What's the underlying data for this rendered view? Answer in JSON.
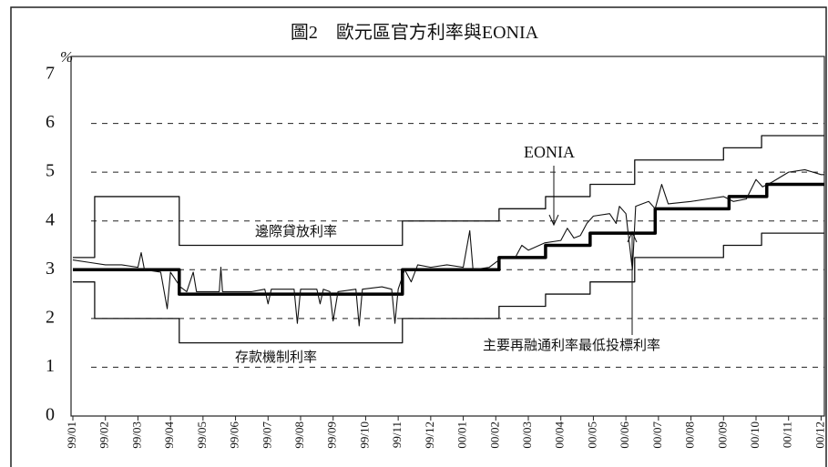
{
  "chart_data": {
    "type": "line",
    "title": "圖2　歐元區官方利率與EONIA",
    "y_unit": "%",
    "annotations": [
      "EONIA",
      "邊際貸放利率",
      "存款機制利率",
      "主要再融通利率最低投標利率"
    ],
    "xlim": [
      0,
      23.1
    ],
    "xticks": [
      {
        "value": 0,
        "label": "99/01"
      },
      {
        "value": 1,
        "label": "99/02"
      },
      {
        "value": 2,
        "label": "99/03"
      },
      {
        "value": 3,
        "label": "99/04"
      },
      {
        "value": 4,
        "label": "99/05"
      },
      {
        "value": 5,
        "label": "99/06"
      },
      {
        "value": 6,
        "label": "99/07"
      },
      {
        "value": 7,
        "label": "99/08"
      },
      {
        "value": 8,
        "label": "99/09"
      },
      {
        "value": 9,
        "label": "99/10"
      },
      {
        "value": 10,
        "label": "99/11"
      },
      {
        "value": 11,
        "label": "99/12"
      },
      {
        "value": 12,
        "label": "00/01"
      },
      {
        "value": 13,
        "label": "00/02"
      },
      {
        "value": 14,
        "label": "00/03"
      },
      {
        "value": 15,
        "label": "00/04"
      },
      {
        "value": 16,
        "label": "00/05"
      },
      {
        "value": 17,
        "label": "00/06"
      },
      {
        "value": 18,
        "label": "00/07"
      },
      {
        "value": 19,
        "label": "00/08"
      },
      {
        "value": 20,
        "label": "00/09"
      },
      {
        "value": 21,
        "label": "00/10"
      },
      {
        "value": 22,
        "label": "00/11"
      },
      {
        "value": 23,
        "label": "00/12"
      }
    ],
    "ylim": [
      0,
      7
    ],
    "yticks": [
      0,
      1,
      2,
      3,
      4,
      5,
      6,
      7
    ],
    "grid": true,
    "series": [
      {
        "name": "邊際貸放利率",
        "color": "#111",
        "width": 1.3,
        "drawstyle": "steps-post",
        "x": [
          0,
          0.67,
          3.27,
          10.13,
          13.1,
          14.53,
          15.9,
          17.27,
          20.0,
          21.17
        ],
        "values": [
          3.25,
          4.5,
          3.5,
          4.0,
          4.25,
          4.5,
          4.75,
          5.25,
          5.5,
          5.75
        ]
      },
      {
        "name": "存款機制利率",
        "color": "#111",
        "width": 1.3,
        "drawstyle": "steps-post",
        "x": [
          0,
          0.67,
          3.27,
          10.13,
          13.1,
          14.53,
          15.9,
          17.27,
          20.0,
          21.17
        ],
        "values": [
          2.75,
          2.0,
          1.5,
          2.0,
          2.25,
          2.5,
          2.75,
          3.25,
          3.5,
          3.75
        ]
      },
      {
        "name": "主要再融通利率最低投標利率",
        "color": "#000",
        "width": 3.5,
        "drawstyle": "steps-post",
        "x": [
          0,
          3.27,
          10.13,
          13.1,
          14.53,
          15.9,
          17.9,
          20.17,
          21.33
        ],
        "values": [
          3.0,
          2.5,
          3.0,
          3.25,
          3.5,
          3.75,
          4.25,
          4.5,
          4.75
        ]
      },
      {
        "name": "EONIA",
        "color": "#111",
        "width": 1.1,
        "drawstyle": "default",
        "x": [
          0,
          0.5,
          1,
          1.5,
          2,
          2.1,
          2.2,
          2.7,
          2.9,
          3.0,
          3.3,
          3.5,
          3.7,
          3.8,
          4.5,
          4.55,
          4.6,
          5.5,
          5.9,
          6.0,
          6.1,
          6.8,
          6.9,
          7.0,
          7.5,
          7.6,
          7.7,
          7.9,
          8.0,
          8.15,
          8.7,
          8.8,
          8.9,
          9.5,
          9.8,
          9.9,
          10.0,
          10.2,
          10.4,
          10.6,
          11,
          11.5,
          12,
          12.2,
          12.3,
          12.8,
          13.2,
          13.6,
          13.8,
          14.0,
          14.5,
          15,
          15.2,
          15.4,
          15.6,
          15.8,
          16,
          16.5,
          16.7,
          16.8,
          17.0,
          17.2,
          17.3,
          17.7,
          17.9,
          18.1,
          18.3,
          19,
          19.5,
          20,
          20.3,
          20.7,
          21,
          21.2,
          21.5,
          22,
          22.5,
          23,
          23.1
        ],
        "values": [
          3.2,
          3.15,
          3.1,
          3.1,
          3.05,
          3.35,
          3.0,
          2.95,
          2.2,
          2.95,
          2.65,
          2.55,
          2.95,
          2.55,
          2.55,
          3.05,
          2.55,
          2.55,
          2.6,
          2.3,
          2.6,
          2.6,
          1.9,
          2.6,
          2.6,
          2.3,
          2.6,
          2.55,
          1.95,
          2.55,
          2.6,
          1.85,
          2.6,
          2.65,
          2.6,
          1.9,
          2.6,
          3.0,
          2.75,
          3.1,
          3.05,
          3.1,
          3.05,
          3.8,
          3.0,
          3.05,
          3.25,
          3.25,
          3.5,
          3.4,
          3.55,
          3.6,
          3.85,
          3.65,
          3.7,
          3.95,
          4.1,
          4.15,
          3.95,
          4.3,
          4.15,
          3.0,
          4.3,
          4.4,
          4.25,
          4.75,
          4.35,
          4.4,
          4.45,
          4.5,
          4.4,
          4.45,
          4.85,
          4.7,
          4.8,
          5.0,
          5.05,
          4.95,
          4.95
        ]
      }
    ]
  }
}
